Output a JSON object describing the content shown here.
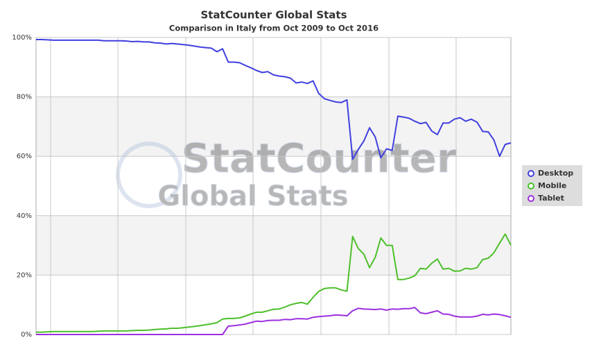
{
  "chart_data": {
    "type": "line",
    "title": "StatCounter Global Stats",
    "subtitle": "Comparison in Italy from Oct 2009 to Oct 2016",
    "watermark": [
      "StatCounter",
      "Global Stats"
    ],
    "ylim": [
      0,
      100
    ],
    "yticks": [
      {
        "value": 0,
        "label": "0%"
      },
      {
        "value": 20,
        "label": "20%"
      },
      {
        "value": 40,
        "label": "40%"
      },
      {
        "value": 60,
        "label": "60%"
      },
      {
        "value": 80,
        "label": "80%"
      },
      {
        "value": 100,
        "label": "100%"
      }
    ],
    "grid": true,
    "legend": "right",
    "series": [
      {
        "name": "Desktop",
        "color": "#3f3fdf",
        "values": [
          99.3,
          99.3,
          99.2,
          99.1,
          99.1,
          99.1,
          99.1,
          99.1,
          99.1,
          99.1,
          99.1,
          99.1,
          98.9,
          98.9,
          98.9,
          98.9,
          98.8,
          98.6,
          98.7,
          98.5,
          98.5,
          98.2,
          98.1,
          97.8,
          98,
          97.8,
          97.6,
          97.4,
          97.1,
          96.8,
          96.6,
          96.4,
          95.2,
          96.2,
          91.7,
          91.7,
          91.5,
          90.6,
          89.8,
          88.9,
          88.2,
          88.5,
          87.4,
          87,
          86.8,
          86.3,
          84.7,
          85,
          84.5,
          85.4,
          81.2,
          79.4,
          78.8,
          78.3,
          78.1,
          79,
          59,
          62.3,
          65.2,
          69.6,
          66.5,
          59.5,
          62.5,
          62,
          73.5,
          73.2,
          72.8,
          71.8,
          71,
          71.4,
          68.5,
          67.3,
          71.2,
          71.2,
          72.5,
          73,
          71.8,
          72.5,
          71.5,
          68.4,
          68.2,
          65.5,
          60,
          64,
          64.5
        ]
      },
      {
        "name": "Mobile",
        "color": "#4cbf2a",
        "values": [
          0.8,
          0.8,
          0.9,
          1,
          1,
          1,
          1,
          1,
          1,
          1,
          1,
          1.1,
          1.2,
          1.2,
          1.2,
          1.2,
          1.2,
          1.3,
          1.4,
          1.4,
          1.5,
          1.7,
          1.8,
          1.9,
          2.1,
          2.1,
          2.3,
          2.5,
          2.7,
          3,
          3.3,
          3.6,
          4,
          5.2,
          5.4,
          5.4,
          5.6,
          6.2,
          6.9,
          7.5,
          7.5,
          8,
          8.5,
          8.6,
          9.2,
          10,
          10.5,
          10.8,
          10.2,
          12.5,
          14.5,
          15.5,
          15.7,
          15.7,
          15,
          14.6,
          33,
          29,
          27,
          22.5,
          26,
          32.5,
          30,
          30,
          18.5,
          18.5,
          19,
          19.8,
          22.3,
          22,
          24,
          25.4,
          22,
          22.3,
          21.3,
          21.4,
          22.3,
          22,
          22.5,
          25.2,
          25.7,
          27.5,
          30.8,
          33.8,
          30.1
        ]
      },
      {
        "name": "Tablet",
        "color": "#9b2fe0",
        "values": [
          0,
          0,
          0,
          0,
          0,
          0,
          0,
          0,
          0,
          0,
          0,
          0,
          0,
          0,
          0,
          0,
          0,
          0,
          0,
          0,
          0,
          0,
          0,
          0,
          0,
          0,
          0,
          0,
          0,
          0,
          0,
          0,
          0,
          0,
          2.8,
          3,
          3.2,
          3.5,
          4,
          4.5,
          4.4,
          4.7,
          4.8,
          4.8,
          5.1,
          5,
          5.3,
          5.3,
          5.2,
          5.8,
          6,
          6.2,
          6.3,
          6.6,
          6.5,
          6.3,
          8,
          8.8,
          8.6,
          8.5,
          8.4,
          8.6,
          8.2,
          8.6,
          8.5,
          8.7,
          8.7,
          9.1,
          7.3,
          7,
          7.5,
          8,
          6.9,
          6.8,
          6.2,
          5.9,
          5.9,
          5.9,
          6.2,
          6.8,
          6.6,
          6.9,
          6.7,
          6.3,
          5.8
        ]
      }
    ]
  }
}
